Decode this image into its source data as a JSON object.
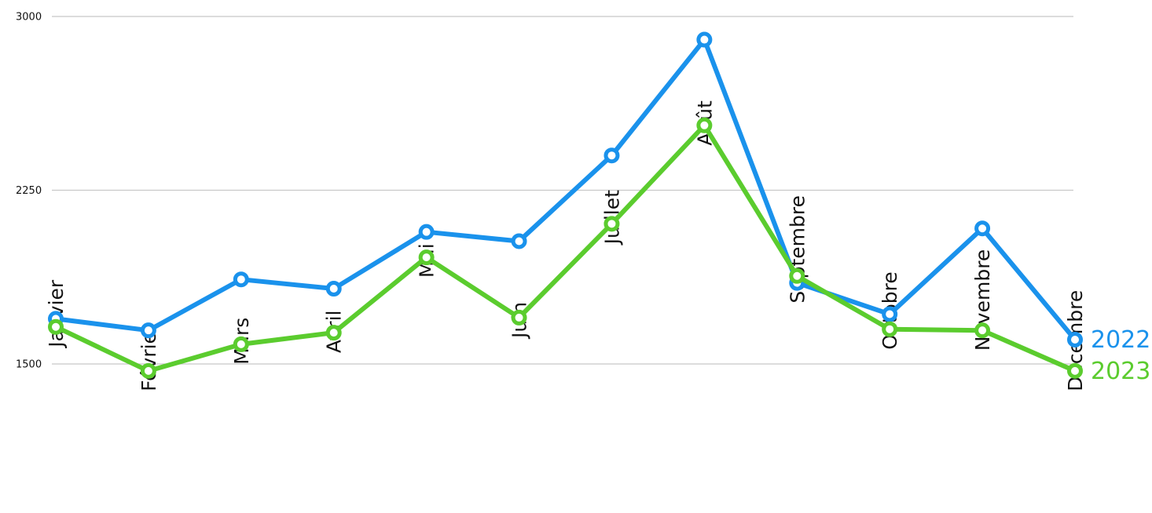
{
  "chart_data": {
    "type": "line",
    "title": "",
    "xlabel": "",
    "ylabel": "",
    "categories": [
      "Janvier",
      "Février",
      "Mars",
      "Avril",
      "Mai",
      "Juin",
      "Juillet",
      "Août",
      "Septembre",
      "Octobre",
      "Novembre",
      "Décembre"
    ],
    "yticks": [
      1500,
      2250,
      3000
    ],
    "ylim": [
      1500,
      3000
    ],
    "grid": true,
    "legend": "end-of-line labels",
    "series": [
      {
        "name": "2022",
        "color": "#1a92ec",
        "values": [
          1695,
          1645,
          1865,
          1825,
          2070,
          2030,
          2400,
          2900,
          1850,
          1715,
          2085,
          1605
        ]
      },
      {
        "name": "2023",
        "color": "#5bcc2e",
        "values": [
          1660,
          1470,
          1585,
          1635,
          1960,
          1700,
          2105,
          2530,
          1880,
          1650,
          1645,
          1470
        ]
      }
    ]
  }
}
